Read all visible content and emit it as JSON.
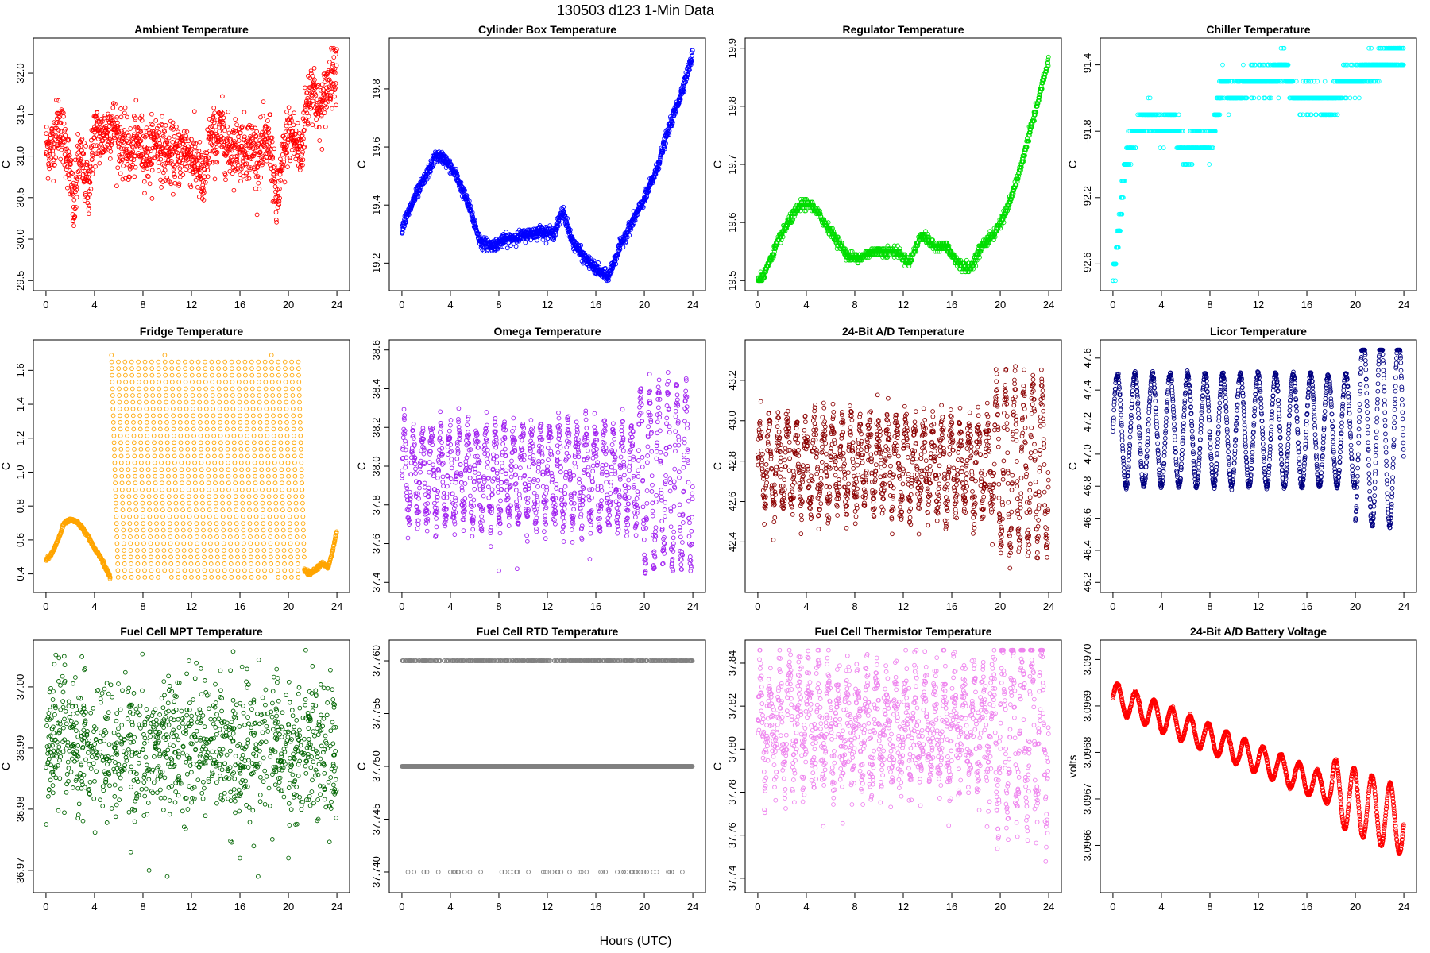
{
  "title": "130503    d123    1-Min Data",
  "xlabel": "Hours (UTC)",
  "chart_data": [
    {
      "type": "scatter",
      "title": "Ambient Temperature",
      "color": "#ff0000",
      "ylabel": "C",
      "xlim": [
        0,
        24
      ],
      "ylim": [
        29.5,
        32.3
      ],
      "yticks": [
        29.5,
        30.0,
        30.5,
        31.0,
        31.5,
        32.0
      ],
      "ytick_labels": [
        "29.5",
        "30.0",
        "30.5",
        "31.0",
        "31.5",
        "32.0"
      ],
      "ydec": 1,
      "x": [
        0,
        0.5,
        1,
        1.5,
        2,
        2.3,
        2.7,
        3,
        3.5,
        4,
        4.5,
        5,
        5.5,
        6,
        6.5,
        7,
        7.5,
        8,
        8.5,
        9,
        9.5,
        10,
        10.5,
        11,
        11.5,
        12,
        12.5,
        13,
        13.5,
        14,
        14.5,
        15,
        15.5,
        16,
        16.5,
        17,
        17.5,
        18,
        18.5,
        19,
        19.5,
        20,
        20.5,
        21,
        21.5,
        22,
        22.5,
        23,
        23.5,
        24
      ],
      "y": [
        31.1,
        31.1,
        31.4,
        31.2,
        30.8,
        30.3,
        31.0,
        30.9,
        30.6,
        31.3,
        31.2,
        31.3,
        31.4,
        31.2,
        31.1,
        31.0,
        31.2,
        31.1,
        31.0,
        31.2,
        31.1,
        31.0,
        31.0,
        31.0,
        31.1,
        31.0,
        30.9,
        30.6,
        31.2,
        31.2,
        31.3,
        31.1,
        31.1,
        31.1,
        31.1,
        31.1,
        31.0,
        31.1,
        31.2,
        30.4,
        30.9,
        31.3,
        31.2,
        31.0,
        31.6,
        31.9,
        31.5,
        31.7,
        32.0,
        32.1
      ],
      "noise": 0.18
    },
    {
      "type": "scatter",
      "title": "Cylinder Box Temperature",
      "color": "#0000ff",
      "ylabel": "C",
      "xlim": [
        0,
        24
      ],
      "ylim": [
        19.14,
        19.94
      ],
      "yticks": [
        19.2,
        19.4,
        19.6,
        19.8
      ],
      "ytick_labels": [
        "19.2",
        "19.4",
        "19.6",
        "19.8"
      ],
      "ydec": 1,
      "x": [
        0,
        1,
        2,
        2.8,
        3.5,
        4.5,
        5.5,
        6.5,
        7.5,
        8.5,
        9.5,
        10.5,
        11.5,
        12.5,
        13.3,
        14,
        15,
        16,
        17,
        18,
        19,
        20,
        21,
        22,
        23,
        24
      ],
      "y": [
        19.32,
        19.42,
        19.5,
        19.57,
        19.56,
        19.5,
        19.4,
        19.27,
        19.26,
        19.28,
        19.29,
        19.3,
        19.31,
        19.3,
        19.38,
        19.28,
        19.22,
        19.18,
        19.15,
        19.26,
        19.34,
        19.42,
        19.52,
        19.66,
        19.78,
        19.92
      ],
      "noise": 0.01
    },
    {
      "type": "scatter",
      "title": "Regulator Temperature",
      "color": "#00dd00",
      "ylabel": "C",
      "xlim": [
        0,
        24
      ],
      "ylim": [
        19.5,
        19.9
      ],
      "yticks": [
        19.5,
        19.6,
        19.7,
        19.8,
        19.9
      ],
      "ytick_labels": [
        "19.5",
        "19.6",
        "19.7",
        "19.8",
        "19.9"
      ],
      "ydec": 1,
      "x": [
        0,
        0.5,
        1.5,
        2.5,
        3.5,
        4.5,
        5.5,
        6.5,
        7.5,
        8.5,
        9.5,
        10.5,
        11.5,
        12.5,
        13.5,
        14.5,
        15.5,
        16.5,
        17.5,
        18.5,
        19.5,
        20.5,
        21.5,
        22.5,
        23.5,
        24
      ],
      "y": [
        19.5,
        19.51,
        19.56,
        19.6,
        19.63,
        19.63,
        19.6,
        19.57,
        19.54,
        19.54,
        19.55,
        19.55,
        19.55,
        19.53,
        19.58,
        19.56,
        19.56,
        19.53,
        19.52,
        19.56,
        19.58,
        19.62,
        19.68,
        19.76,
        19.84,
        19.88
      ],
      "noise": 0.004,
      "quant": 0.005
    },
    {
      "type": "scatter",
      "title": "Chiller Temperature",
      "color": "#00ffff",
      "ylabel": "C",
      "xlim": [
        0,
        24
      ],
      "ylim": [
        -92.7,
        -91.3
      ],
      "yticks": [
        -92.6,
        -92.2,
        -91.8,
        -91.4
      ],
      "ytick_labels": [
        "-92.6",
        "-92.2",
        "-91.8",
        "-91.4"
      ],
      "ydec": 1,
      "x": [
        0,
        0.5,
        1,
        1.5,
        2,
        3,
        4,
        5,
        6,
        6.5,
        7,
        8,
        9,
        10,
        11,
        12,
        13,
        14,
        15,
        16,
        17,
        18,
        19,
        20,
        21,
        22,
        23,
        24
      ],
      "y": [
        -92.7,
        -92.4,
        -92.0,
        -91.9,
        -91.8,
        -91.7,
        -91.8,
        -91.75,
        -91.95,
        -91.9,
        -91.85,
        -91.9,
        -91.5,
        -91.6,
        -91.5,
        -91.5,
        -91.5,
        -91.4,
        -91.6,
        -91.6,
        -91.6,
        -91.65,
        -91.5,
        -91.5,
        -91.4,
        -91.4,
        -91.35,
        -91.35
      ],
      "noise": 0.04,
      "quant": 0.1
    },
    {
      "type": "scatter",
      "title": "Fridge Temperature",
      "color": "#ffa500",
      "ylabel": "C",
      "xlim": [
        0,
        24
      ],
      "ylim": [
        0.35,
        1.72
      ],
      "yticks": [
        0.4,
        0.6,
        0.8,
        1.0,
        1.2,
        1.4,
        1.6
      ],
      "ytick_labels": [
        "0.4",
        "0.6",
        "0.8",
        "1.0",
        "1.2",
        "1.4",
        "1.6"
      ],
      "ydec": 1,
      "x": [
        0,
        0.5,
        1,
        1.5,
        2,
        2.5,
        3,
        3.5,
        4,
        4.5,
        5,
        5.3
      ],
      "y": [
        0.48,
        0.52,
        0.6,
        0.7,
        0.72,
        0.71,
        0.67,
        0.62,
        0.55,
        0.5,
        0.42,
        0.38
      ],
      "cycle": {
        "start": 5.4,
        "end": 21.3,
        "period": 0.55,
        "ymin": 0.38,
        "ymax": 1.69
      },
      "x2": [
        21.3,
        21.8,
        22.3,
        22.8,
        23.3,
        23.7,
        24
      ],
      "y2": [
        0.42,
        0.4,
        0.43,
        0.46,
        0.44,
        0.55,
        0.66
      ],
      "noise": 0.005
    },
    {
      "type": "scatter",
      "title": "Omega Temperature",
      "color": "#a020f0",
      "ylabel": "C",
      "xlim": [
        0,
        24
      ],
      "ylim": [
        37.4,
        38.6
      ],
      "yticks": [
        37.4,
        37.6,
        37.8,
        38.0,
        38.2,
        38.4,
        38.6
      ],
      "ytick_labels": [
        "37.4",
        "37.6",
        "37.8",
        "38.0",
        "38.2",
        "38.4",
        "38.6"
      ],
      "ydec": 1,
      "osc": {
        "start": 0,
        "end": 24,
        "period": 0.75,
        "mid": 37.95,
        "amp": 0.23,
        "amp_late": 0.45,
        "late_start": 19.5
      },
      "x": [
        8,
        9.5,
        15.5
      ],
      "y": [
        37.46,
        37.47,
        37.52
      ],
      "noise": 0.05
    },
    {
      "type": "scatter",
      "title": "24-Bit A/D Temperature",
      "color": "#8b0000",
      "ylabel": "C",
      "xlim": [
        0,
        24
      ],
      "ylim": [
        42.2,
        43.35
      ],
      "yticks": [
        42.4,
        42.6,
        42.8,
        43.0,
        43.2
      ],
      "ytick_labels": [
        "42.4",
        "42.6",
        "42.8",
        "43.0",
        "43.2"
      ],
      "ydec": 1,
      "osc": {
        "start": 0,
        "end": 24,
        "period": 0.75,
        "mid": 42.78,
        "amp": 0.2,
        "amp_late": 0.4,
        "late_start": 19.5
      },
      "noise": 0.06
    },
    {
      "type": "scatter",
      "title": "Licor Temperature",
      "color": "#000080",
      "ylabel": "C",
      "xlim": [
        0,
        24
      ],
      "ylim": [
        46.2,
        47.65
      ],
      "yticks": [
        46.2,
        46.4,
        46.6,
        46.8,
        47.0,
        47.2,
        47.4,
        47.6
      ],
      "ytick_labels": [
        "46.2",
        "46.4",
        "46.6",
        "46.8",
        "47.0",
        "47.2",
        "47.4",
        "47.6"
      ],
      "ydec": 1,
      "osc": {
        "start": 0,
        "end": 24,
        "period": 1.45,
        "mid": 47.15,
        "amp": 0.35,
        "amp_late": 0.6,
        "late_start": 20
      },
      "noise": 0.01
    },
    {
      "type": "scatter",
      "title": "Fuel Cell MPT Temperature",
      "color": "#006400",
      "ylabel": "C",
      "xlim": [
        0,
        24
      ],
      "ylim": [
        36.968,
        37.006
      ],
      "yticks": [
        36.97,
        36.98,
        36.99,
        37.0
      ],
      "ytick_labels": [
        "36.97",
        "36.98",
        "36.99",
        "37.00"
      ],
      "ydec": 2,
      "random": {
        "mid": 36.99,
        "spread": 0.0055,
        "n": 1100
      },
      "x": [
        1.5,
        7,
        8.5,
        10,
        16,
        17.5,
        20
      ],
      "y": [
        37.005,
        36.973,
        36.97,
        36.969,
        36.972,
        36.969,
        36.972
      ],
      "noise": 0.0
    },
    {
      "type": "scatter",
      "title": "Fuel Cell RTD Temperature",
      "color": "#808080",
      "ylabel": "C",
      "xlim": [
        0,
        24
      ],
      "ylim": [
        37.739,
        37.761
      ],
      "yticks": [
        37.74,
        37.745,
        37.75,
        37.755,
        37.76
      ],
      "ytick_labels": [
        "37.740",
        "37.745",
        "37.750",
        "37.755",
        "37.760"
      ],
      "ydec": 3,
      "levels": [
        {
          "y": 37.75,
          "density": 1.0
        },
        {
          "y": 37.76,
          "density": 0.55
        },
        {
          "y": 37.74,
          "density": 0.08
        }
      ],
      "noise": 0.0
    },
    {
      "type": "scatter",
      "title": "Fuel Cell Thermistor Temperature",
      "color": "#ee82ee",
      "ylabel": "C",
      "xlim": [
        0,
        24
      ],
      "ylim": [
        37.738,
        37.846
      ],
      "yticks": [
        37.74,
        37.76,
        37.78,
        37.8,
        37.82,
        37.84
      ],
      "ytick_labels": [
        "37.74",
        "37.76",
        "37.78",
        "37.80",
        "37.82",
        "37.84"
      ],
      "ydec": 2,
      "osc": {
        "start": 0,
        "end": 24,
        "period": 0.8,
        "mid": 37.81,
        "amp": 0.02,
        "amp_late": 0.04,
        "late_start": 19.5
      },
      "noise": 0.01
    },
    {
      "type": "scatter",
      "title": "24-Bit A/D Battery Voltage",
      "color": "#ff0000",
      "ylabel": "volts",
      "xlim": [
        0,
        24
      ],
      "ylim": [
        3.09652,
        3.09702
      ],
      "yticks": [
        3.0966,
        3.0967,
        3.0968,
        3.0969,
        3.097
      ],
      "ytick_labels": [
        "3.0966",
        "3.0967",
        "3.0968",
        "3.0969",
        "3.0970"
      ],
      "ydec": 4,
      "osc": {
        "start": 0,
        "end": 24,
        "period": 1.5,
        "trend_start": 3.09692,
        "trend_end": 3.09665,
        "amp": 3e-05,
        "amp_late": 7e-05,
        "late_start": 18
      },
      "noise": 1.5e-06
    }
  ]
}
